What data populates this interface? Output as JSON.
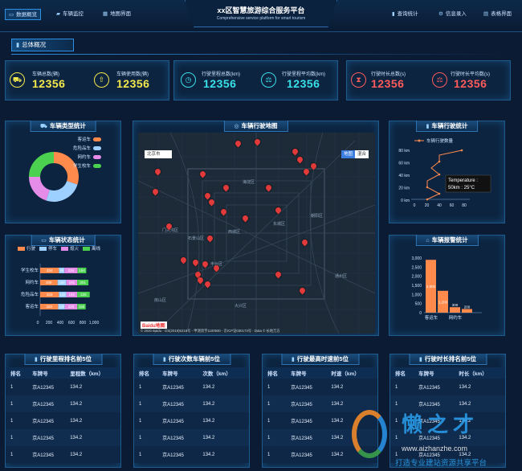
{
  "header": {
    "title": "xx区智慧旅游综合服务平台",
    "subtitle": "Comprehensive service platform for smart tourism",
    "nav_left": [
      {
        "label": "数据概览",
        "icon": "monitor-icon"
      },
      {
        "label": "车辆监控",
        "icon": "truck-icon"
      },
      {
        "label": "地图界面",
        "icon": "map-icon"
      }
    ],
    "nav_right": [
      {
        "label": "查询统计",
        "icon": "bar-chart-icon"
      },
      {
        "label": "信息录入",
        "icon": "gear-icon"
      },
      {
        "label": "表格界面",
        "icon": "table-icon"
      }
    ]
  },
  "section_tab": "总体概况",
  "stats": [
    {
      "label": "车辆总数(辆)",
      "value": "12356",
      "icon": "car-icon",
      "color": "#f5e84c"
    },
    {
      "label": "车辆使用数(辆)",
      "value": "12356",
      "icon": "upload-icon",
      "color": "#f5e84c"
    },
    {
      "label": "行驶里程总数(km)",
      "value": "12356",
      "icon": "odometer-icon",
      "color": "#39e0e8"
    },
    {
      "label": "行驶里程平均数(km)",
      "value": "12356",
      "icon": "scale-icon",
      "color": "#39e0e8"
    },
    {
      "label": "行驶时长总数(s)",
      "value": "12356",
      "icon": "hourglass-icon",
      "color": "#ff5b5b"
    },
    {
      "label": "行驶时长平均数(s)",
      "value": "12356",
      "icon": "scale-icon",
      "color": "#ff5b5b"
    }
  ],
  "panels": {
    "vehicle_type": "车辆类型统计",
    "map": "车辆行驶地图",
    "driving": "车辆行驶统计",
    "status": "车辆状态统计",
    "alarm": "车辆报警统计"
  },
  "donut": {
    "legend": [
      "客运车",
      "危险品车",
      "网约车",
      "学生校车"
    ],
    "values": [
      30,
      25,
      20,
      25
    ],
    "colors": [
      "#ff8a4c",
      "#9ed0ff",
      "#e58be8",
      "#4bd04f"
    ]
  },
  "map": {
    "search_label": "北京市",
    "map_types": [
      "地图",
      "混合"
    ],
    "copyright": "© 2020 Baidu - GS(2019)5218号 - 甲测资字1100930 - 京ICP证030173号 - Data © 长地万方",
    "logo": "Baidu地图",
    "places": [
      "门头沟区",
      "海淀区",
      "朝阳区",
      "东城区",
      "西城区",
      "丰台区",
      "石景山区",
      "大兴区",
      "房山区",
      "通州区"
    ],
    "markers": [
      [
        0.42,
        0.04
      ],
      [
        0.5,
        0.03
      ],
      [
        0.66,
        0.08
      ],
      [
        0.68,
        0.12
      ],
      [
        0.74,
        0.15
      ],
      [
        0.71,
        0.18
      ],
      [
        0.08,
        0.18
      ],
      [
        0.07,
        0.28
      ],
      [
        0.27,
        0.19
      ],
      [
        0.37,
        0.26
      ],
      [
        0.55,
        0.26
      ],
      [
        0.29,
        0.3
      ],
      [
        0.31,
        0.33
      ],
      [
        0.59,
        0.37
      ],
      [
        0.36,
        0.38
      ],
      [
        0.13,
        0.45
      ],
      [
        0.45,
        0.41
      ],
      [
        0.3,
        0.51
      ],
      [
        0.7,
        0.53
      ],
      [
        0.19,
        0.62
      ],
      [
        0.24,
        0.63
      ],
      [
        0.28,
        0.64
      ],
      [
        0.33,
        0.66
      ],
      [
        0.25,
        0.69
      ],
      [
        0.59,
        0.69
      ],
      [
        0.26,
        0.72
      ],
      [
        0.29,
        0.74
      ],
      [
        0.69,
        0.77
      ]
    ]
  },
  "driving_chart": {
    "legend": "车辆行驶数量",
    "yticks": [
      "80 km",
      "60 km",
      "40 km",
      "20 km",
      "0 km"
    ],
    "xticks": [
      "0",
      "20",
      "40",
      "60",
      "80"
    ],
    "tooltip_line1": "Temperature :",
    "tooltip_line2": "50km : 25°C"
  },
  "status_chart": {
    "legend": [
      "行驶",
      "停车",
      "熄火",
      "离线"
    ],
    "colors": [
      "#ff8a4c",
      "#9ed0ff",
      "#e58be8",
      "#4bd04f"
    ],
    "categories": [
      "学生校车",
      "网约车",
      "危险品车",
      "客运车"
    ],
    "values": [
      [
        334,
        98,
        234,
        154
      ],
      [
        309,
        158,
        191,
        201
      ],
      [
        333,
        132,
        192,
        225
      ],
      [
        320,
        120,
        220,
        150
      ]
    ],
    "xticks": [
      "0",
      "200",
      "400",
      "600",
      "800",
      "1,000"
    ]
  },
  "alarm_chart": {
    "yticks": [
      "3,000",
      "2,500",
      "2,000",
      "1,500",
      "1,000",
      "500",
      "0"
    ],
    "categories": [
      "客运车",
      "网约车"
    ],
    "values": [
      2900,
      1200,
      300,
      200
    ],
    "labels": [
      "2,900",
      "1,200",
      "300",
      "200"
    ]
  },
  "tables": [
    {
      "title": "行驶里程排名前5位",
      "cols": [
        "排名",
        "车牌号",
        "里程数（km）"
      ],
      "rows": [
        [
          "1",
          "京A12345",
          "134.2"
        ],
        [
          "1",
          "京A12345",
          "134.2"
        ],
        [
          "1",
          "京A12345",
          "134.2"
        ],
        [
          "1",
          "京A12345",
          "134.2"
        ],
        [
          "1",
          "京A12345",
          "134.2"
        ]
      ]
    },
    {
      "title": "行驶次数车辆前5位",
      "cols": [
        "排名",
        "车牌号",
        "次数（km）"
      ],
      "rows": [
        [
          "1",
          "京A12345",
          "134.2"
        ],
        [
          "1",
          "京A12345",
          "134.2"
        ],
        [
          "1",
          "京A12345",
          "134.2"
        ],
        [
          "1",
          "京A12345",
          "134.2"
        ],
        [
          "1",
          "京A12345",
          "134.2"
        ]
      ]
    },
    {
      "title": "行驶最高时速前5位",
      "cols": [
        "排名",
        "车牌号",
        "时速（km）"
      ],
      "rows": [
        [
          "1",
          "京A12345",
          "134.2"
        ],
        [
          "1",
          "京A12345",
          "134.2"
        ],
        [
          "1",
          "京A12345",
          "134.2"
        ],
        [
          "1",
          "京A12345",
          "134.2"
        ],
        [
          "1",
          "京A12345",
          "134.2"
        ]
      ]
    },
    {
      "title": "行驶时长排名前5位",
      "cols": [
        "排名",
        "车牌号",
        "时长（km）"
      ],
      "rows": [
        [
          "1",
          "京A12345",
          "134.2"
        ],
        [
          "1",
          "京A12345",
          "134.2"
        ],
        [
          "1",
          "京A12345",
          "134.2"
        ],
        [
          "1",
          "京A12345",
          "134.2"
        ],
        [
          "1",
          "京A12345",
          "134.2"
        ]
      ]
    }
  ],
  "watermark": {
    "brand": "懒之才",
    "url": "www.aizhanzhe.com",
    "slogan": "打造专业建站资源共享平台"
  }
}
